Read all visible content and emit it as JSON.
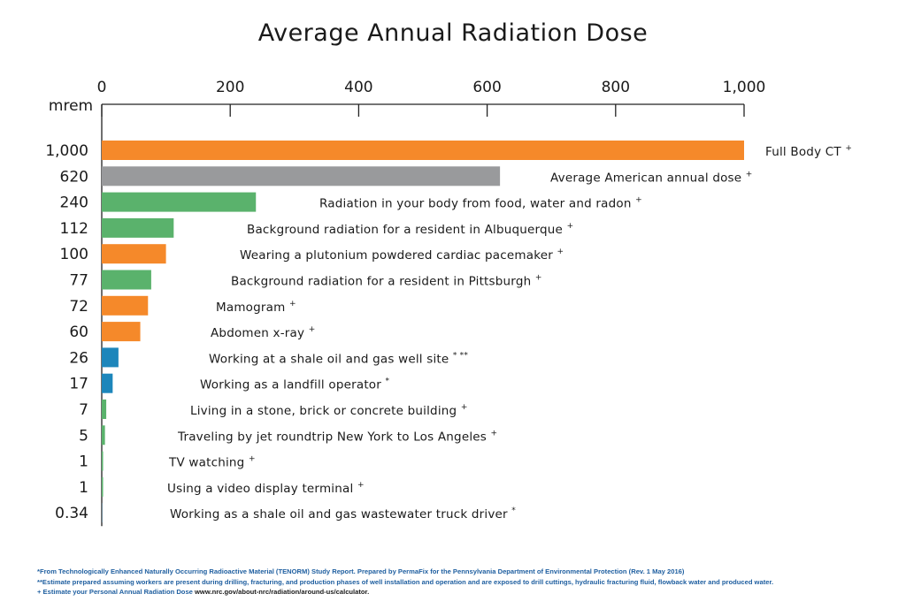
{
  "chart_data": {
    "type": "bar",
    "orientation": "horizontal",
    "title": "Average Annual Radiation Dose",
    "unit_label": "mrem",
    "xlim": [
      0,
      1000
    ],
    "x_ticks": [
      "0",
      "200",
      "400",
      "600",
      "800",
      "1,000"
    ],
    "grid": false,
    "colors": {
      "orange": "#f5892a",
      "gray": "#999a9c",
      "green": "#5ab26c",
      "blue": "#1d86bb"
    },
    "bars": [
      {
        "value_label": "1,000",
        "value": 1000,
        "label": "Full Body CT",
        "mark": "+",
        "color": "orange"
      },
      {
        "value_label": "620",
        "value": 620,
        "label": "Average American annual dose",
        "mark": "+",
        "color": "gray"
      },
      {
        "value_label": "240",
        "value": 240,
        "label": "Radiation in your body from food, water and radon",
        "mark": "+",
        "color": "green"
      },
      {
        "value_label": "112",
        "value": 112,
        "label": "Background radiation for a resident in Albuquerque",
        "mark": "+",
        "color": "green"
      },
      {
        "value_label": "100",
        "value": 100,
        "label": "Wearing a plutonium powdered cardiac pacemaker",
        "mark": "+",
        "color": "orange"
      },
      {
        "value_label": "77",
        "value": 77,
        "label": "Background radiation for a resident in Pittsburgh",
        "mark": "+",
        "color": "green"
      },
      {
        "value_label": "72",
        "value": 72,
        "label": "Mamogram",
        "mark": "+",
        "color": "orange"
      },
      {
        "value_label": "60",
        "value": 60,
        "label": "Abdomen x-ray",
        "mark": "+",
        "color": "orange"
      },
      {
        "value_label": "26",
        "value": 26,
        "label": "Working at a shale oil and gas well site",
        "mark": "*  **",
        "color": "blue"
      },
      {
        "value_label": "17",
        "value": 17,
        "label": "Working as a landfill operator",
        "mark": "*",
        "color": "blue"
      },
      {
        "value_label": "7",
        "value": 7,
        "label": "Living in a stone, brick or concrete building",
        "mark": "+",
        "color": "green"
      },
      {
        "value_label": "5",
        "value": 5,
        "label": "Traveling by jet roundtrip New York to Los Angeles",
        "mark": "+",
        "color": "green"
      },
      {
        "value_label": "1",
        "value": 1,
        "label": "TV watching",
        "mark": "+",
        "color": "green"
      },
      {
        "value_label": "1",
        "value": 1,
        "label": "Using a video display terminal",
        "mark": "+",
        "color": "green"
      },
      {
        "value_label": "0.34",
        "value": 0.34,
        "label": "Working as a shale oil and gas wastewater truck driver",
        "mark": "*",
        "color": "blue"
      }
    ]
  },
  "footnotes": {
    "note1": "*From Technologically Enhanced Naturally Occurring Radioactive Material (TENORM) Study Report. Prepared by PermaFix for the Pennsylvania Department of Environmental Protection (Rev. 1 May 2016)",
    "note2": "**Estimate prepared assuming workers are present during drilling, fracturing, and production phases of well installation and operation and are exposed to drill cuttings, hydraulic fracturing fluid, flowback water and produced water.",
    "note3_text": "+ Estimate your Personal Annual Radiation Dose ",
    "note3_url": "www.nrc.gov/about-nrc/radiation/around-us/calculator."
  }
}
